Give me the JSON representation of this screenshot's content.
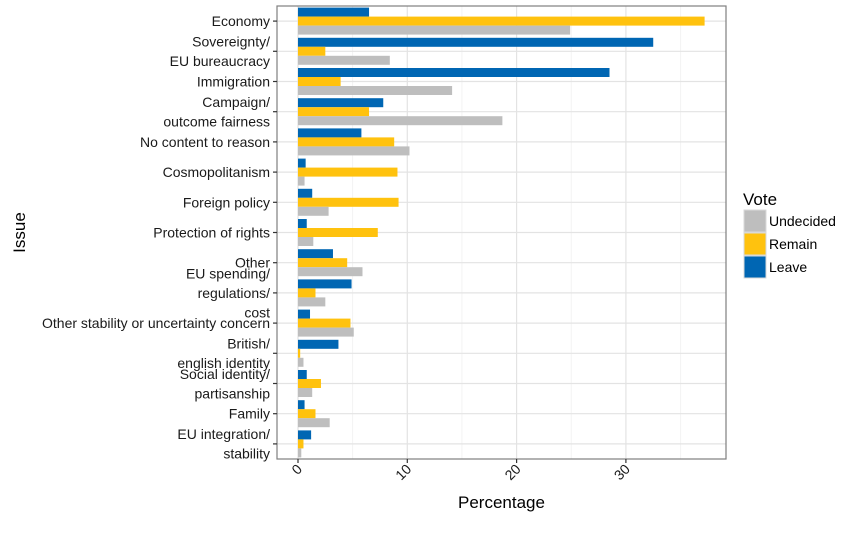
{
  "chart_data": {
    "type": "bar",
    "orientation": "horizontal",
    "title": "",
    "xlabel": "Percentage",
    "ylabel": "Issue",
    "xlim": [
      -1.8,
      39.2
    ],
    "xticks": [
      0,
      10,
      20,
      30
    ],
    "xtick_labels": [
      "0",
      "10",
      "20",
      "30"
    ],
    "grid": true,
    "legend_position": "right",
    "legend_title": "Vote",
    "categories": [
      "Economy",
      "Sovereignty/\nEU bureaucracy",
      "Immigration",
      "Campaign/\noutcome fairness",
      "No content to reason",
      "Cosmopolitanism",
      "Foreign policy",
      "Protection of rights",
      "Other",
      "EU spending/\nregulations/\ncost",
      "Other stability or uncertainty concern",
      "British/\nenglish identity",
      "Social identity/\npartisanship",
      "Family",
      "EU integration/\nstability"
    ],
    "series": [
      {
        "name": "Leave",
        "color": "#0066b3",
        "values": [
          6.5,
          32.5,
          28.5,
          7.8,
          5.8,
          0.7,
          1.3,
          0.8,
          3.2,
          4.9,
          1.1,
          3.7,
          0.8,
          0.6,
          1.2
        ]
      },
      {
        "name": "Remain",
        "color": "#ffc20e",
        "values": [
          37.2,
          2.5,
          3.9,
          6.5,
          8.8,
          9.1,
          9.2,
          7.3,
          4.5,
          1.6,
          4.8,
          0.2,
          2.1,
          1.6,
          0.5
        ]
      },
      {
        "name": "Undecided",
        "color": "#bebebe",
        "values": [
          24.9,
          8.4,
          14.1,
          18.7,
          10.2,
          0.6,
          2.8,
          1.4,
          5.9,
          2.5,
          5.1,
          0.5,
          1.3,
          2.9,
          0.3
        ]
      }
    ],
    "legend_order": [
      "Undecided",
      "Remain",
      "Leave"
    ]
  }
}
